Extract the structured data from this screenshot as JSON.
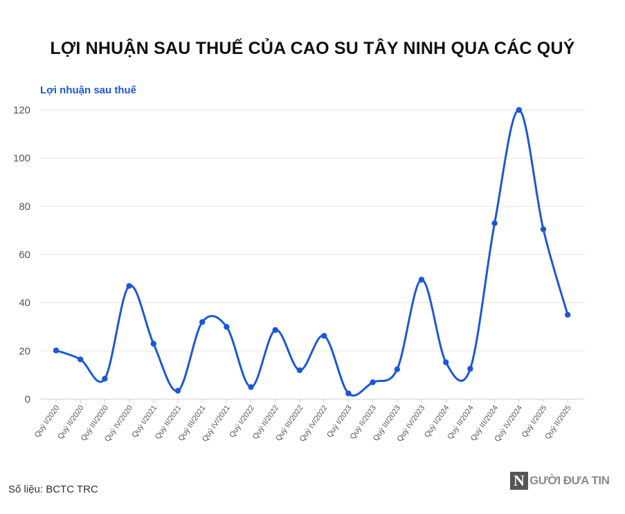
{
  "chart_data": {
    "type": "line",
    "title": "LỢI NHUẬN SAU THUẾ CỦA CAO SU TÂY NINH QUA CÁC QUÝ",
    "series_label": "Lợi nhuận sau thuế",
    "categories": [
      "Quý I/2020",
      "Quý II/2020",
      "Quý III/2020",
      "Quý IV/2020",
      "Quý I/2021",
      "Quý II/2021",
      "Quý III/2021",
      "Quý IV/2021",
      "Quý I/2022",
      "Quý II/2022",
      "Quý III/2022",
      "Quý IV/2022",
      "Quý I/2023",
      "Quý II/2023",
      "Quý III/2023",
      "Quý IV/2023",
      "Quý I/2024",
      "Quý II/2024",
      "Quý III/2024",
      "Quý IV/2024",
      "Quý I/2025",
      "Quý II/2025"
    ],
    "values": [
      20.2,
      16.5,
      8.5,
      47,
      23,
      3.5,
      32,
      30,
      5,
      28.7,
      12,
      26.3,
      2.4,
      7,
      12.4,
      49.6,
      15.3,
      12.6,
      73,
      120,
      70.5,
      35
    ],
    "ylim": [
      0,
      120
    ],
    "yticks": [
      0,
      20,
      40,
      60,
      80,
      100,
      120
    ],
    "grid": true,
    "line_color": "#1b57d8",
    "source": "Số liệu: BCTC TRC",
    "logo": {
      "letter": "N",
      "text": "GƯỜI ĐƯA TIN"
    }
  }
}
